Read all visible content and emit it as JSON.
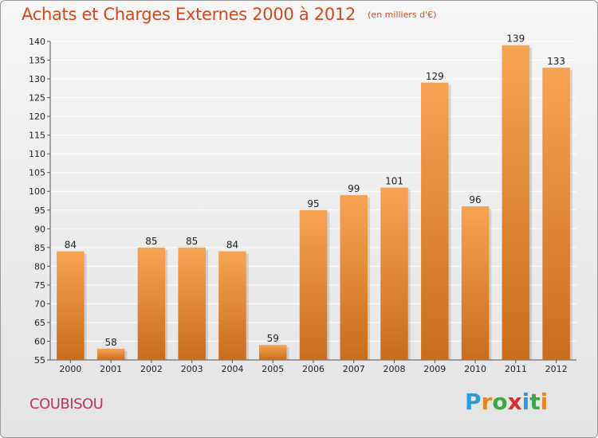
{
  "header": {
    "title": "Achats et Charges Externes 2000 à 2012",
    "subtitle": "(en milliers d'€)"
  },
  "footer": {
    "place": "COUBISOU",
    "logo_letters": [
      {
        "ch": "P",
        "color": "#2e9ad6"
      },
      {
        "ch": "r",
        "color": "#e8861b"
      },
      {
        "ch": "o",
        "color": "#3aa844"
      },
      {
        "ch": "x",
        "color": "#d52f2f"
      },
      {
        "ch": "i",
        "color": "#2e9ad6"
      },
      {
        "ch": "t",
        "color": "#3aa844"
      },
      {
        "ch": "i",
        "color": "#e8861b"
      }
    ]
  },
  "colors": {
    "bar_top": "#f7a452",
    "bar_bottom": "#c96d1c",
    "grid": "#ffffff",
    "axis": "#555555",
    "title": "#d04a1f"
  },
  "chart_data": {
    "type": "bar",
    "title": "Achats et Charges Externes 2000 à 2012",
    "subtitle": "(en milliers d'€)",
    "categories": [
      "2000",
      "2001",
      "2002",
      "2003",
      "2004",
      "2005",
      "2006",
      "2007",
      "2008",
      "2009",
      "2010",
      "2011",
      "2012"
    ],
    "values": [
      84,
      58,
      85,
      85,
      84,
      59,
      95,
      99,
      101,
      129,
      96,
      139,
      133
    ],
    "ylim": [
      55,
      140
    ],
    "yticks": [
      55,
      60,
      65,
      70,
      75,
      80,
      85,
      90,
      95,
      100,
      105,
      110,
      115,
      120,
      125,
      130,
      135,
      140
    ],
    "grid": true,
    "legend": "none"
  }
}
